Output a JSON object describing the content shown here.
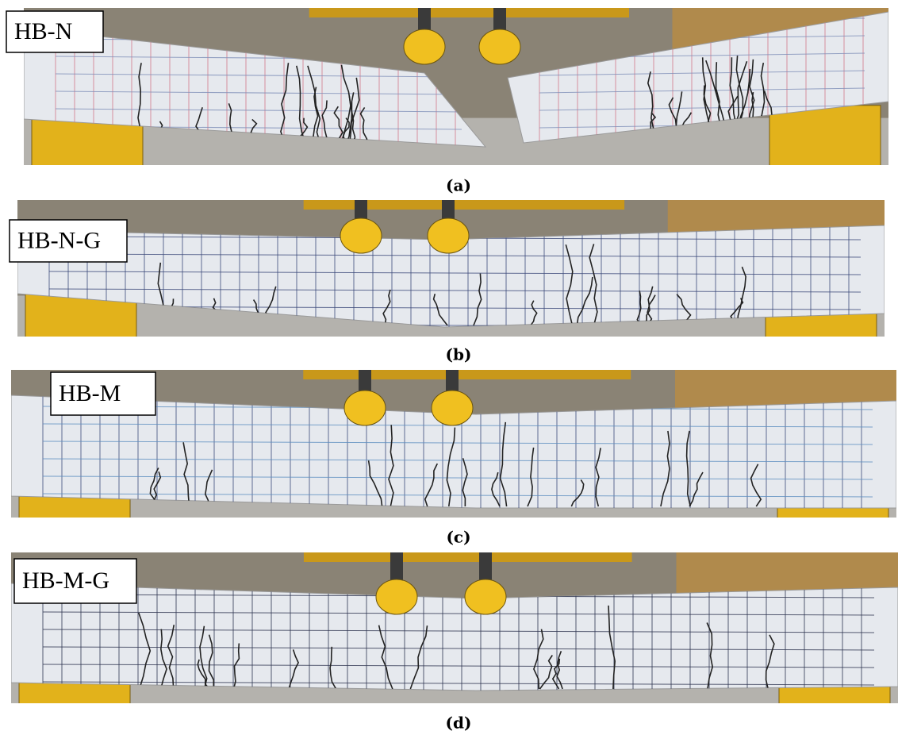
{
  "panels": [
    {
      "label": "HB-N",
      "caption": "(a)"
    },
    {
      "label": "HB-N-G",
      "caption": "(b)"
    },
    {
      "label": "HB-M",
      "caption": "(c)"
    },
    {
      "label": "HB-M-G",
      "caption": "(d)"
    }
  ]
}
